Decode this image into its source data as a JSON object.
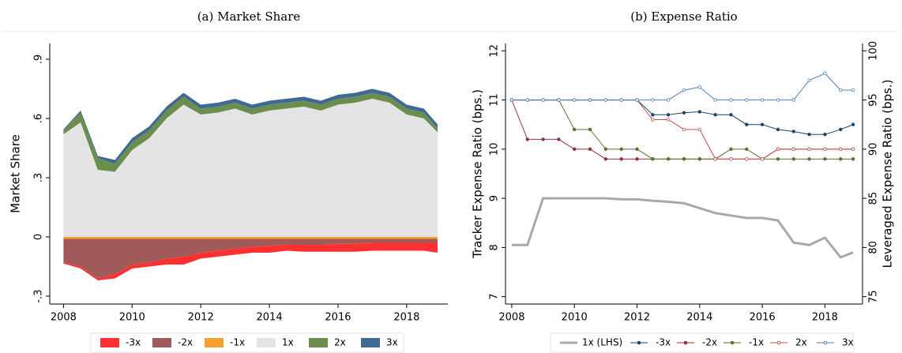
{
  "chart_data": [
    {
      "type": "area",
      "title": "(a) Market Share",
      "ylabel": "Market Share",
      "x": [
        2008,
        2008.5,
        2009,
        2009.5,
        2010,
        2010.5,
        2011,
        2011.5,
        2012,
        2012.5,
        2013,
        2013.5,
        2014,
        2014.5,
        2015,
        2015.5,
        2016,
        2016.5,
        2017,
        2017.5,
        2018,
        2018.5,
        2018.9
      ],
      "xlim": [
        2007.6,
        2019.2
      ],
      "xticks": [
        2008,
        2010,
        2012,
        2014,
        2016,
        2018
      ],
      "ylim": [
        -0.34,
        0.98
      ],
      "yticks": [
        {
          "value": -0.3,
          "label": "-.3"
        },
        0,
        {
          "value": 0.3,
          "label": ".3"
        },
        {
          "value": 0.6,
          "label": ".6"
        },
        {
          "value": 0.9,
          "label": ".9"
        }
      ],
      "series": [
        {
          "name": "-3x",
          "color": "#ff3030",
          "values": [
            -0.005,
            -0.01,
            -0.01,
            -0.02,
            -0.02,
            -0.02,
            -0.03,
            -0.04,
            -0.03,
            -0.03,
            -0.03,
            -0.03,
            -0.035,
            -0.03,
            -0.035,
            -0.035,
            -0.04,
            -0.04,
            -0.04,
            -0.04,
            -0.04,
            -0.04,
            -0.05
          ]
        },
        {
          "name": "-2x",
          "color": "#a05a5a",
          "values": [
            -0.12,
            -0.14,
            -0.2,
            -0.18,
            -0.13,
            -0.12,
            -0.1,
            -0.09,
            -0.07,
            -0.06,
            -0.05,
            -0.04,
            -0.035,
            -0.03,
            -0.03,
            -0.03,
            -0.025,
            -0.025,
            -0.02,
            -0.02,
            -0.02,
            -0.02,
            -0.02
          ]
        },
        {
          "name": "-1x",
          "color": "#f5a033",
          "values": [
            -0.01,
            -0.01,
            -0.01,
            -0.01,
            -0.01,
            -0.01,
            -0.01,
            -0.01,
            -0.01,
            -0.01,
            -0.01,
            -0.01,
            -0.01,
            -0.01,
            -0.01,
            -0.01,
            -0.01,
            -0.01,
            -0.01,
            -0.01,
            -0.01,
            -0.01,
            -0.01
          ]
        },
        {
          "name": "1x",
          "color": "#e4e4e4",
          "values": [
            0.52,
            0.58,
            0.34,
            0.33,
            0.44,
            0.5,
            0.6,
            0.67,
            0.62,
            0.63,
            0.65,
            0.62,
            0.64,
            0.65,
            0.66,
            0.64,
            0.67,
            0.68,
            0.7,
            0.68,
            0.62,
            0.6,
            0.53
          ]
        },
        {
          "name": "2x",
          "color": "#6b8e4e",
          "values": [
            0.02,
            0.05,
            0.06,
            0.04,
            0.04,
            0.04,
            0.04,
            0.04,
            0.03,
            0.03,
            0.03,
            0.03,
            0.03,
            0.03,
            0.03,
            0.03,
            0.03,
            0.03,
            0.03,
            0.03,
            0.03,
            0.03,
            0.02
          ]
        },
        {
          "name": "3x",
          "color": "#3f6a93",
          "values": [
            0.005,
            0.01,
            0.01,
            0.02,
            0.02,
            0.02,
            0.02,
            0.02,
            0.02,
            0.02,
            0.02,
            0.02,
            0.02,
            0.02,
            0.02,
            0.02,
            0.02,
            0.02,
            0.02,
            0.02,
            0.02,
            0.02,
            0.02
          ]
        }
      ]
    },
    {
      "type": "line",
      "title": "(b) Expense Ratio",
      "ylabel": "Tracker Expense Ratio (bps.)",
      "y2label": "Leveraged Expense Ratio (bps.)",
      "x": [
        2008,
        2008.5,
        2009,
        2009.5,
        2010,
        2010.5,
        2011,
        2011.5,
        2012,
        2012.5,
        2013,
        2013.5,
        2014,
        2014.5,
        2015,
        2015.5,
        2016,
        2016.5,
        2017,
        2017.5,
        2018,
        2018.5,
        2018.9
      ],
      "xlim": [
        2007.8,
        2019.2
      ],
      "xticks": [
        2008,
        2010,
        2012,
        2014,
        2016,
        2018
      ],
      "ylim": [
        6.85,
        12.15
      ],
      "yticks": [
        7,
        8,
        9,
        10,
        11,
        12
      ],
      "y2lim": [
        74.25,
        100.75
      ],
      "y2ticks": [
        75,
        80,
        85,
        90,
        95,
        100
      ],
      "series": [
        {
          "name": "1x (LHS)",
          "color": "#a8a8a8",
          "values": [
            8.05,
            8.05,
            9,
            9,
            9,
            9,
            9,
            8.98,
            8.98,
            8.95,
            8.93,
            8.9,
            8.8,
            8.7,
            8.65,
            8.6,
            8.6,
            8.55,
            8.1,
            8.05,
            8.2,
            7.8,
            7.9
          ]
        },
        {
          "name": "-3x",
          "color": "#1a476f",
          "axis": "y2",
          "values": [
            95,
            95,
            95,
            95,
            95,
            95,
            95,
            95,
            95,
            93.5,
            93.5,
            93.7,
            93.8,
            93.5,
            93.5,
            92.5,
            92.5,
            92,
            91.8,
            91.5,
            91.5,
            92,
            92.5
          ]
        },
        {
          "name": "-2x",
          "color": "#90353b",
          "axis": "y2",
          "values": [
            95,
            91,
            91,
            91,
            90,
            90,
            89,
            89,
            89,
            89,
            89,
            89,
            89,
            89,
            89,
            89,
            89,
            90,
            90,
            90,
            90,
            90,
            90
          ]
        },
        {
          "name": "-1x",
          "color": "#55752f",
          "axis": "y2",
          "values": [
            95,
            95,
            95,
            95,
            92,
            92,
            90,
            90,
            90,
            89,
            89,
            89,
            89,
            89,
            90,
            90,
            89,
            89,
            89,
            89,
            89,
            89,
            89
          ]
        },
        {
          "name": "2x",
          "color": "#c0504d",
          "axis": "y2",
          "values": [
            95,
            95,
            95,
            95,
            95,
            95,
            95,
            95,
            95,
            93,
            93,
            92,
            92,
            89,
            89,
            89,
            89,
            90,
            90,
            90,
            90,
            90,
            90
          ]
        },
        {
          "name": "3x",
          "color": "#4f81bd",
          "axis": "y2",
          "values": [
            95,
            95,
            95,
            95,
            95,
            95,
            95,
            95,
            95,
            95,
            95,
            96,
            96.3,
            95,
            95,
            95,
            95,
            95,
            95,
            97,
            97.7,
            96,
            96
          ]
        }
      ]
    }
  ]
}
